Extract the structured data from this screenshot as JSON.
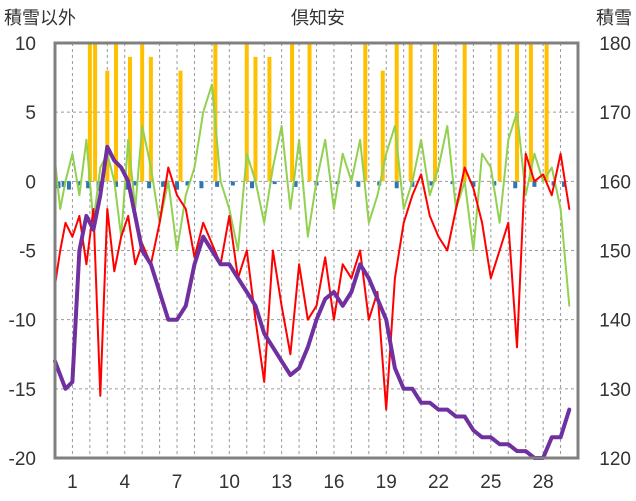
{
  "chart_data": {
    "type": "line",
    "title": "倶知安",
    "ylabel_left": "積雪以外",
    "ylabel_right": "積雪",
    "xlim": [
      0,
      30
    ],
    "ylim_left": [
      -20,
      10
    ],
    "ylim_right": [
      120,
      180
    ],
    "x_ticks": [
      1,
      4,
      7,
      10,
      13,
      16,
      19,
      22,
      25,
      28
    ],
    "y_ticks_left": [
      10,
      5,
      0,
      -5,
      -10,
      -15,
      -20
    ],
    "y_ticks_right": [
      180,
      170,
      160,
      150,
      140,
      130,
      120
    ],
    "grid": true,
    "colors": {
      "temperature": "#ff0000",
      "wind": "#92d050",
      "snowfall": "#ffc000",
      "precipitation": "#2e75b6",
      "snow_depth": "#7030a0",
      "frame": "#808080"
    },
    "series": [
      {
        "key": "temperature",
        "axis": "left",
        "x": [
          0,
          0.3,
          0.6,
          1.0,
          1.4,
          1.8,
          2.2,
          2.6,
          3.0,
          3.4,
          3.8,
          4.2,
          4.6,
          5.0,
          5.5,
          6.0,
          6.5,
          7.0,
          7.5,
          8.0,
          8.5,
          9.0,
          9.5,
          10.0,
          10.5,
          11.0,
          11.5,
          12.0,
          12.5,
          13.0,
          13.5,
          14.0,
          14.5,
          15.0,
          15.5,
          16.0,
          16.5,
          17.0,
          17.5,
          18.0,
          18.5,
          19.0,
          19.5,
          20.0,
          20.5,
          21.0,
          21.5,
          22.0,
          22.5,
          23.0,
          23.5,
          24.0,
          24.5,
          25.0,
          25.5,
          26.0,
          26.5,
          27.0,
          27.5,
          28.0,
          28.5,
          29.0,
          29.5
        ],
        "y": [
          -7.5,
          -5,
          -3,
          -4,
          -2.5,
          -6,
          -2,
          -15.5,
          -2,
          -6.5,
          -4,
          -2.5,
          -6,
          -4.5,
          -6,
          -3,
          1,
          -1,
          -2,
          -5.5,
          -3,
          -4.5,
          -6,
          -2.5,
          -7,
          -5,
          -10,
          -14.5,
          -5,
          -9,
          -12.5,
          -6,
          -10,
          -9,
          -5.5,
          -10,
          -6,
          -7,
          -5,
          -10,
          -8,
          -16.5,
          -7,
          -3,
          -1,
          0.5,
          -2.5,
          -4,
          -5,
          -2,
          1,
          -0.5,
          -3,
          -7,
          -5,
          -3,
          -12,
          2,
          0,
          0.5,
          -1,
          2,
          -2
        ]
      },
      {
        "key": "wind",
        "axis": "left",
        "x": [
          0,
          0.3,
          0.6,
          1.0,
          1.4,
          1.8,
          2.2,
          2.6,
          3.0,
          3.4,
          3.8,
          4.2,
          4.6,
          5.0,
          5.5,
          6.0,
          6.5,
          7.0,
          7.5,
          8.0,
          8.5,
          9.0,
          9.5,
          10.0,
          10.5,
          11.0,
          11.5,
          12.0,
          12.5,
          13.0,
          13.5,
          14.0,
          14.5,
          15.0,
          15.5,
          16.0,
          16.5,
          17.0,
          17.5,
          18.0,
          18.5,
          19.0,
          19.5,
          20.0,
          20.5,
          21.0,
          21.5,
          22.0,
          22.5,
          23.0,
          23.5,
          24.0,
          24.5,
          25.0,
          25.5,
          26.0,
          26.5,
          27.0,
          27.5,
          28.0,
          28.5,
          29.0,
          29.5
        ],
        "y": [
          1.5,
          -2,
          0,
          2,
          -1,
          3,
          -3,
          1,
          2,
          0,
          -4,
          3,
          -2,
          4,
          1,
          -3,
          0,
          -5,
          -1,
          1,
          5,
          7,
          0,
          -2,
          -5,
          2,
          0,
          -3,
          1,
          4,
          -2,
          3,
          -4,
          0,
          3,
          -2,
          2,
          0,
          3,
          -3,
          -1,
          2,
          4,
          -2,
          0,
          3,
          -1,
          1,
          4,
          -2,
          0,
          -5,
          2,
          1,
          -3,
          3,
          5,
          -1,
          2,
          0,
          1,
          -2,
          -9
        ]
      },
      {
        "key": "snow_depth",
        "axis": "right",
        "x": [
          0,
          0.3,
          0.6,
          1.0,
          1.4,
          1.8,
          2.2,
          2.6,
          3.0,
          3.4,
          3.8,
          4.2,
          4.6,
          5.0,
          5.5,
          6.0,
          6.5,
          7.0,
          7.5,
          8.0,
          8.5,
          9.0,
          9.5,
          10.0,
          10.5,
          11.0,
          11.5,
          12.0,
          12.5,
          13.0,
          13.5,
          14.0,
          14.5,
          15.0,
          15.5,
          16.0,
          16.5,
          17.0,
          17.5,
          18.0,
          18.5,
          19.0,
          19.5,
          20.0,
          20.5,
          21.0,
          21.5,
          22.0,
          22.5,
          23.0,
          23.5,
          24.0,
          24.5,
          25.0,
          25.5,
          26.0,
          26.5,
          27.0,
          27.5,
          28.0,
          28.5,
          29.0,
          29.5
        ],
        "y": [
          134,
          132,
          130,
          131,
          150,
          155,
          153,
          158,
          165,
          163,
          162,
          160,
          155,
          150,
          148,
          144,
          140,
          140,
          142,
          148,
          152,
          150,
          148,
          148,
          146,
          144,
          142,
          138,
          136,
          134,
          132,
          133,
          136,
          140,
          143,
          144,
          142,
          144,
          148,
          146,
          143,
          140,
          133,
          130,
          130,
          128,
          128,
          127,
          127,
          126,
          126,
          124,
          123,
          123,
          122,
          122,
          121,
          121,
          120,
          120,
          123,
          123,
          127
        ]
      },
      {
        "key": "snowfall",
        "axis": "left",
        "x": [
          2.0,
          2.3,
          3.0,
          3.5,
          4.3,
          5.0,
          5.5,
          7.2,
          9.2,
          11.0,
          11.5,
          12.3,
          13.6,
          14.6,
          17.8,
          18.8,
          19.6,
          20.4,
          21.8,
          23.5,
          25.5,
          26.5,
          27.3,
          28.2
        ],
        "y": [
          10,
          10,
          8,
          10,
          9,
          10,
          9,
          8,
          10,
          10,
          9,
          9,
          10,
          10,
          10,
          8,
          10,
          10,
          10,
          10,
          10,
          10,
          10,
          10
        ]
      },
      {
        "key": "precipitation",
        "axis": "left",
        "x": [
          0.2,
          0.5,
          0.8,
          1.4,
          1.9,
          2.5,
          3.5,
          4.1,
          4.6,
          5.4,
          6.2,
          7.0,
          7.6,
          8.4,
          9.3,
          10.2,
          11.3,
          12.6,
          13.8,
          15.0,
          16.2,
          17.4,
          18.6,
          19.6,
          20.5,
          21.6,
          22.8,
          24.0,
          25.2,
          26.4,
          27.5,
          28.6,
          29.2
        ],
        "y": [
          -0.5,
          -0.4,
          -0.6,
          -0.3,
          -0.5,
          -0.7,
          -0.4,
          -0.6,
          -0.3,
          -0.5,
          -0.4,
          -0.6,
          -0.3,
          -0.5,
          -0.4,
          -0.3,
          -0.5,
          -0.2,
          -0.4,
          -0.3,
          -0.2,
          -0.4,
          -0.3,
          -0.5,
          -0.4,
          -0.3,
          -0.2,
          -0.4,
          -0.3,
          -0.5,
          -0.4,
          -0.3,
          -0.4
        ]
      }
    ]
  }
}
